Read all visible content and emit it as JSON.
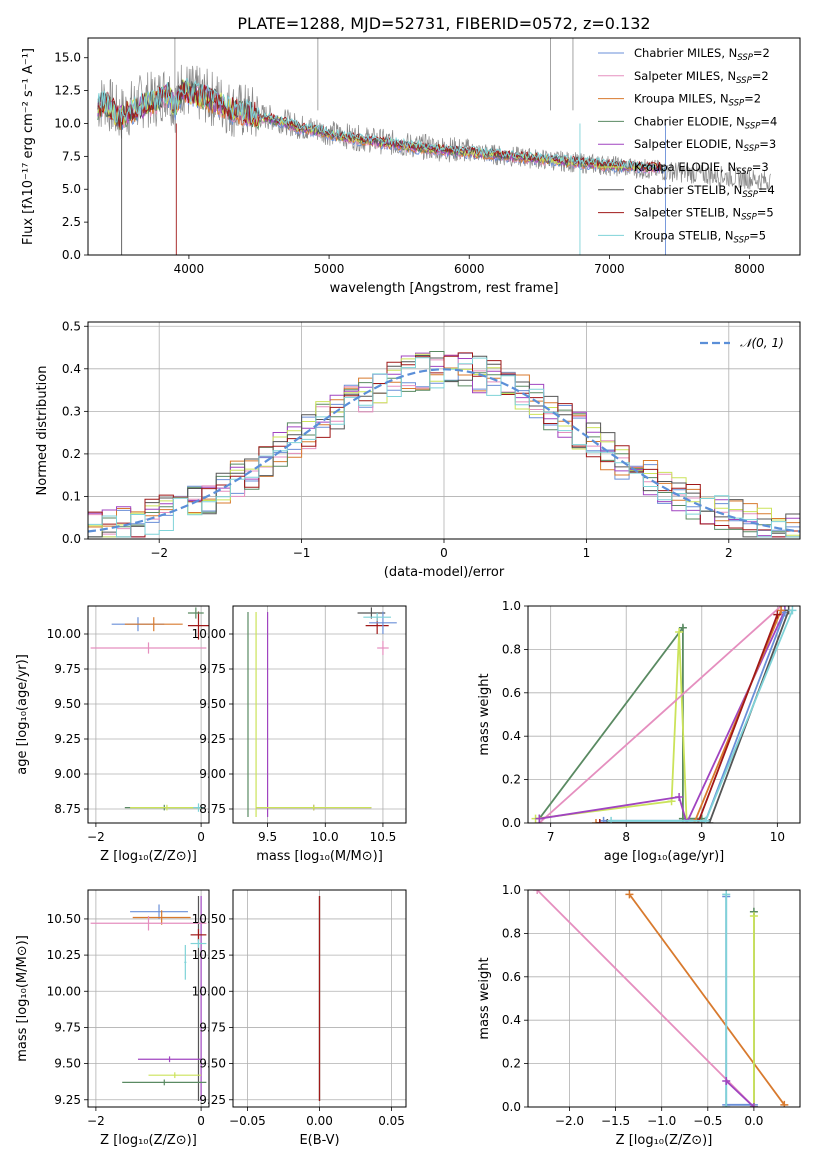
{
  "figure_title": "PLATE=1288, MJD=52731, FIBERID=0572, z=0.132",
  "legend_models": [
    {
      "label": "Chabrier MILES, N",
      "sub": "SSP",
      "tail": "=2",
      "color": "#6a8fd8"
    },
    {
      "label": "Salpeter MILES, N",
      "sub": "SSP",
      "tail": "=2",
      "color": "#e58fbf"
    },
    {
      "label": "Kroupa MILES, N",
      "sub": "SSP",
      "tail": "=2",
      "color": "#d87a2e"
    },
    {
      "label": "Chabrier ELODIE, N",
      "sub": "SSP",
      "tail": "=4",
      "color": "#5a8a62"
    },
    {
      "label": "Salpeter ELODIE, N",
      "sub": "SSP",
      "tail": "=3",
      "color": "#a044c0"
    },
    {
      "label": "Kroupa ELODIE, N",
      "sub": "SSP",
      "tail": "=3",
      "color": "#cbe35a"
    },
    {
      "label": "Chabrier STELIB, N",
      "sub": "SSP",
      "tail": "=4",
      "color": "#555555"
    },
    {
      "label": "Salpeter STELIB, N",
      "sub": "SSP",
      "tail": "=5",
      "color": "#a01818"
    },
    {
      "label": "Kroupa STELIB, N",
      "sub": "SSP",
      "tail": "=5",
      "color": "#7fd3d8"
    }
  ],
  "chart_data": [
    {
      "id": "spectrum",
      "type": "line",
      "title": "PLATE=1288, MJD=52731, FIBERID=0572, z=0.132",
      "xlabel": "wavelength [Angstrom, rest frame]",
      "ylabel": "Flux [fλ10⁻¹⁷ erg cm⁻² s⁻¹ A⁻¹]",
      "xlim": [
        3280,
        8360
      ],
      "ylim": [
        0,
        16.5
      ],
      "xticks": [
        4000,
        5000,
        6000,
        7000,
        8000
      ],
      "xtick_labels": [
        "4000",
        "5000",
        "6000",
        "7000",
        "8000"
      ],
      "yticks": [
        0,
        2.5,
        5,
        7.5,
        10,
        12.5,
        15
      ],
      "ytick_labels": [
        "0.0",
        "2.5",
        "5.0",
        "7.5",
        "10.0",
        "12.5",
        "15.0"
      ],
      "data_x": [
        3350,
        3400,
        3450,
        3500,
        3550,
        3600,
        3650,
        3700,
        3750,
        3800,
        3850,
        3900,
        3950,
        4000,
        4100,
        4200,
        4300,
        4400,
        4500,
        4600,
        4700,
        4800,
        4900,
        5000,
        5200,
        5400,
        5600,
        5800,
        6000,
        6200,
        6400,
        6600,
        6800,
        7000,
        7200,
        7400,
        7600,
        7800,
        8000,
        8150
      ],
      "data_y": [
        11.4,
        11.8,
        11.2,
        10.6,
        10.9,
        11.3,
        11.6,
        11.9,
        11.7,
        12.2,
        12.6,
        11.4,
        12.9,
        12.4,
        12.1,
        11.8,
        11.1,
        10.9,
        10.6,
        10.4,
        10.1,
        9.7,
        9.6,
        9.3,
        8.9,
        8.6,
        8.3,
        8.1,
        7.9,
        7.6,
        7.4,
        7.2,
        7.0,
        6.8,
        6.6,
        6.4,
        6.2,
        6.0,
        5.8,
        5.6
      ],
      "model_x": [
        3350,
        3400,
        3450,
        3500,
        3550,
        3600,
        3650,
        3700,
        3750,
        3800,
        3850,
        3900,
        3950,
        4000,
        4100,
        4200,
        4300,
        4400,
        4500,
        4600,
        4700,
        4800,
        4900,
        5000,
        5200,
        5400,
        5600,
        5800,
        6000,
        6200,
        6400,
        6600,
        6800,
        7000,
        7200,
        7400
      ],
      "model_y": [
        11.2,
        11.6,
        11.0,
        10.4,
        10.7,
        11.0,
        11.2,
        11.5,
        11.6,
        12.0,
        12.3,
        11.2,
        12.6,
        12.3,
        12.0,
        11.6,
        11.0,
        10.8,
        10.5,
        10.3,
        10.0,
        9.6,
        9.5,
        9.2,
        8.8,
        8.5,
        8.2,
        8.0,
        7.8,
        7.6,
        7.4,
        7.2,
        7.0,
        6.8,
        6.7,
        6.6
      ],
      "spikes": [
        [
          3900,
          16.5
        ],
        [
          4920,
          16.5
        ],
        [
          6580,
          16.5
        ],
        [
          6740,
          16.5
        ],
        [
          3520,
          0
        ],
        [
          3910,
          0
        ],
        [
          6790,
          0
        ],
        [
          7400,
          0
        ]
      ]
    },
    {
      "id": "residuals",
      "type": "line",
      "xlabel": "(data-model)/error",
      "ylabel": "Normed distribution",
      "xlim": [
        -2.5,
        2.5
      ],
      "ylim": [
        0,
        0.51
      ],
      "xticks": [
        -2,
        -1,
        0,
        1,
        2
      ],
      "xtick_labels": [
        "−2",
        "−1",
        "0",
        "1",
        "2"
      ],
      "yticks": [
        0,
        0.1,
        0.2,
        0.3,
        0.4,
        0.5
      ],
      "ytick_labels": [
        "0.0",
        "0.1",
        "0.2",
        "0.3",
        "0.4",
        "0.5"
      ],
      "legend": "𝒩(0, 1)",
      "gauss_color": "#5b8fd8"
    },
    {
      "id": "age_vs_Z",
      "type": "scatter",
      "xlabel": "Z [log₁₀(Z/Z⊙)]",
      "ylabel": "age  [log₁₀(age/yr)]",
      "xlim": [
        -2.15,
        0.15
      ],
      "ylim": [
        8.65,
        10.2
      ],
      "xticks": [
        -2,
        0
      ],
      "xtick_labels": [
        "−2",
        "0"
      ],
      "yticks": [
        8.75,
        9.0,
        9.25,
        9.5,
        9.75,
        10.0
      ],
      "ytick_labels": [
        "8.75",
        "9.00",
        "9.25",
        "9.50",
        "9.75",
        "10.00"
      ],
      "points": [
        {
          "x": -1.2,
          "y": 10.07,
          "ex": 0.5,
          "ey": 0.05,
          "c": "#6a8fd8"
        },
        {
          "x": -0.9,
          "y": 10.07,
          "ex": 0.55,
          "ey": 0.05,
          "c": "#d87a2e"
        },
        {
          "x": -1.0,
          "y": 9.9,
          "ex": 1.1,
          "ey": 0.04,
          "c": "#e58fbf"
        },
        {
          "x": -0.05,
          "y": 10.06,
          "ex": 0.2,
          "ey": 0.1,
          "c": "#a01818"
        },
        {
          "x": -0.1,
          "y": 10.15,
          "ex": 0.15,
          "ey": 0.04,
          "c": "#5a8a62"
        },
        {
          "x": -0.7,
          "y": 8.76,
          "ex": 0.75,
          "ey": 0.02,
          "c": "#5a8a62"
        },
        {
          "x": -0.65,
          "y": 8.76,
          "ex": 0.7,
          "ey": 0.02,
          "c": "#cbe35a"
        },
        {
          "x": -0.05,
          "y": 8.76,
          "ex": 0.1,
          "ey": 0.03,
          "c": "#7fd3d8"
        }
      ]
    },
    {
      "id": "age_vs_mass",
      "type": "scatter",
      "xlabel": "mass [log₁₀(M/M⊙)]",
      "ylabel": "",
      "xlim": [
        9.2,
        10.7
      ],
      "ylim": [
        8.65,
        10.2
      ],
      "xticks": [
        9.5,
        10.0,
        10.5
      ],
      "xtick_labels": [
        "9.5",
        "10.0",
        "10.5"
      ],
      "yticks": [
        8.75,
        9.0,
        9.25,
        9.5,
        9.75,
        10.0
      ],
      "ytick_labels": [
        "8.75",
        "9.00",
        "9.25",
        "9.50",
        "9.75",
        "10.00"
      ],
      "points": [
        {
          "x": 10.4,
          "y": 10.15,
          "ex": 0.12,
          "ey": 0.04,
          "c": "#555555"
        },
        {
          "x": 10.45,
          "y": 10.06,
          "ex": 0.1,
          "ey": 0.06,
          "c": "#a01818"
        },
        {
          "x": 10.5,
          "y": 10.08,
          "ex": 0.12,
          "ey": 0.08,
          "c": "#6a8fd8"
        },
        {
          "x": 10.45,
          "y": 10.12,
          "ex": 0.12,
          "ey": 0.03,
          "c": "#7fd3d8"
        },
        {
          "x": 10.5,
          "y": 9.9,
          "ex": 0.05,
          "ey": 0.05,
          "c": "#e58fbf"
        },
        {
          "x": 9.9,
          "y": 8.76,
          "ex": 0.5,
          "ey": 0.02,
          "c": "#a044c0"
        },
        {
          "x": 9.9,
          "y": 8.76,
          "ex": 0.5,
          "ey": 0.02,
          "c": "#cbe35a"
        }
      ],
      "vlines": [
        [
          9.4,
          "#cbe35a"
        ],
        [
          9.5,
          "#a044c0"
        ],
        [
          9.33,
          "#5a8a62"
        ]
      ]
    },
    {
      "id": "mass_weight_vs_age",
      "type": "line",
      "xlabel": "age  [log₁₀(age/yr)]",
      "ylabel": "mass weight",
      "xlim": [
        6.7,
        10.3
      ],
      "ylim": [
        0,
        1
      ],
      "xticks": [
        7,
        8,
        9,
        10
      ],
      "xtick_labels": [
        "7",
        "8",
        "9",
        "10"
      ],
      "yticks": [
        0,
        0.2,
        0.4,
        0.6,
        0.8,
        1.0
      ],
      "ytick_labels": [
        "0.0",
        "0.2",
        "0.4",
        "0.6",
        "0.8",
        "1.0"
      ],
      "series": [
        {
          "c": "#5a8a62",
          "x": [
            6.85,
            8.75,
            8.75,
            9.0
          ],
          "y": [
            0.02,
            0.9,
            0.02,
            0.02
          ]
        },
        {
          "c": "#cbe35a",
          "x": [
            6.8,
            8.6,
            8.7,
            8.8
          ],
          "y": [
            0.02,
            0.1,
            0.88,
            0.0
          ]
        },
        {
          "c": "#e58fbf",
          "x": [
            6.85,
            10.05
          ],
          "y": [
            0.0,
            1.0
          ]
        },
        {
          "c": "#a044c0",
          "x": [
            6.85,
            8.7,
            8.8,
            10.1
          ],
          "y": [
            0.02,
            0.12,
            0.0,
            0.98
          ]
        },
        {
          "c": "#6a8fd8",
          "x": [
            7.7,
            9.05,
            10.1
          ],
          "y": [
            0.01,
            0.01,
            0.97
          ]
        },
        {
          "c": "#d87a2e",
          "x": [
            7.6,
            8.9,
            10.05
          ],
          "y": [
            0.0,
            0.0,
            0.98
          ]
        },
        {
          "c": "#a01818",
          "x": [
            7.65,
            8.95,
            10.0
          ],
          "y": [
            0.0,
            0.0,
            0.96
          ]
        },
        {
          "c": "#555555",
          "x": [
            7.75,
            9.1,
            10.15
          ],
          "y": [
            0.0,
            0.0,
            0.98
          ]
        },
        {
          "c": "#7fd3d8",
          "x": [
            7.8,
            9.05,
            10.2
          ],
          "y": [
            0.01,
            0.01,
            0.98
          ]
        }
      ]
    },
    {
      "id": "mass_vs_Z",
      "type": "scatter",
      "xlabel": "Z [log₁₀(Z/Z⊙)]",
      "ylabel": "mass [log₁₀(M/M⊙)]",
      "xlim": [
        -2.15,
        0.15
      ],
      "ylim": [
        9.2,
        10.7
      ],
      "xticks": [
        -2,
        0
      ],
      "xtick_labels": [
        "−2",
        "0"
      ],
      "yticks": [
        9.25,
        9.5,
        9.75,
        10.0,
        10.25,
        10.5
      ],
      "ytick_labels": [
        "9.25",
        "9.50",
        "9.75",
        "10.00",
        "10.25",
        "10.50"
      ],
      "points": [
        {
          "x": -0.8,
          "y": 10.55,
          "ex": 0.55,
          "ey": 0.05,
          "c": "#6a8fd8"
        },
        {
          "x": -0.75,
          "y": 10.51,
          "ex": 0.55,
          "ey": 0.05,
          "c": "#d87a2e"
        },
        {
          "x": -1.0,
          "y": 10.47,
          "ex": 1.1,
          "ey": 0.05,
          "c": "#e58fbf"
        },
        {
          "x": -0.3,
          "y": 10.2,
          "ex": 0.02,
          "ey": 0.12,
          "c": "#7fd3d8"
        },
        {
          "x": -0.05,
          "y": 10.39,
          "ex": 0.15,
          "ey": 0.04,
          "c": "#a01818"
        },
        {
          "x": -0.05,
          "y": 10.33,
          "ex": 0.15,
          "ey": 0.03,
          "c": "#7fd3d8"
        },
        {
          "x": -0.6,
          "y": 9.53,
          "ex": 0.6,
          "ey": 0.02,
          "c": "#a044c0"
        },
        {
          "x": -0.5,
          "y": 9.42,
          "ex": 0.5,
          "ey": 0.02,
          "c": "#cbe35a"
        },
        {
          "x": -0.7,
          "y": 9.37,
          "ex": 0.8,
          "ey": 0.02,
          "c": "#5a8a62"
        }
      ],
      "vlines": [
        [
          -0.05,
          "#555555"
        ],
        [
          0.0,
          "#a044c0"
        ]
      ]
    },
    {
      "id": "mass_vs_EBV",
      "type": "scatter",
      "xlabel": "E(B-V)",
      "ylabel": "",
      "xlim": [
        -0.06,
        0.06
      ],
      "ylim": [
        9.2,
        10.7
      ],
      "xticks": [
        -0.05,
        0.0,
        0.05
      ],
      "xtick_labels": [
        "−0.05",
        "0.00",
        "0.05"
      ],
      "yticks": [
        9.25,
        9.5,
        9.75,
        10.0,
        10.25,
        10.5
      ],
      "ytick_labels": [
        "9.25",
        "9.50",
        "9.75",
        "10.00",
        "10.25",
        "10.50"
      ],
      "vlines": [
        [
          0.0,
          "#cbe35a"
        ],
        [
          0.0,
          "#a044c0"
        ],
        [
          0.0,
          "#5a8a62"
        ],
        [
          0.0,
          "#a01818"
        ]
      ]
    },
    {
      "id": "mass_weight_vs_Z",
      "type": "line",
      "xlabel": "Z [log₁₀(Z/Z⊙)]",
      "ylabel": "mass weight",
      "xlim": [
        -2.45,
        0.5
      ],
      "ylim": [
        0,
        1
      ],
      "xticks": [
        -2.0,
        -1.5,
        -1.0,
        -0.5,
        0.0
      ],
      "xtick_labels": [
        "−2.0",
        "−1.5",
        "−1.0",
        "−0.5",
        "0.0"
      ],
      "yticks": [
        0,
        0.2,
        0.4,
        0.6,
        0.8,
        1.0
      ],
      "ytick_labels": [
        "0.0",
        "0.2",
        "0.4",
        "0.6",
        "0.8",
        "1.0"
      ],
      "series": [
        {
          "c": "#e58fbf",
          "x": [
            -2.35,
            0.0
          ],
          "y": [
            1.0,
            0.0
          ]
        },
        {
          "c": "#d87a2e",
          "x": [
            -1.35,
            0.33
          ],
          "y": [
            0.98,
            0.01
          ]
        },
        {
          "c": "#6a8fd8",
          "x": [
            -0.3,
            -0.3,
            0.0
          ],
          "y": [
            0.97,
            0.01,
            0.01
          ]
        },
        {
          "c": "#7fd3d8",
          "x": [
            -0.3,
            -0.3
          ],
          "y": [
            0.98,
            0.0
          ]
        },
        {
          "c": "#5a8a62",
          "x": [
            0.0,
            0.0
          ],
          "y": [
            0.9,
            0.0
          ]
        },
        {
          "c": "#cbe35a",
          "x": [
            0.0,
            0.0
          ],
          "y": [
            0.88,
            0.0
          ]
        },
        {
          "c": "#a044c0",
          "x": [
            -0.3,
            0.0
          ],
          "y": [
            0.12,
            0.0
          ]
        }
      ]
    }
  ]
}
